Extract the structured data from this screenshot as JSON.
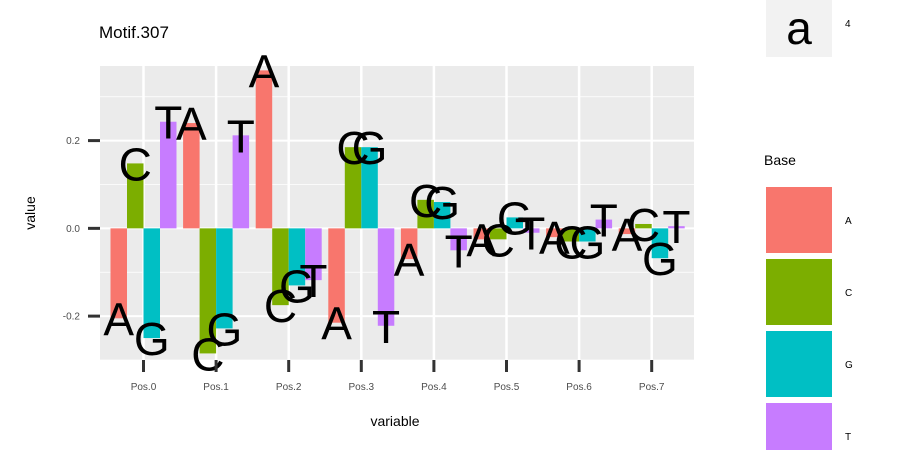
{
  "chart_data": {
    "type": "bar",
    "title": "Motif.307",
    "xlabel": "variable",
    "ylabel": "value",
    "categories": [
      "Pos.0",
      "Pos.1",
      "Pos.2",
      "Pos.3",
      "Pos.4",
      "Pos.5",
      "Pos.6",
      "Pos.7"
    ],
    "ylim": [
      -0.3,
      0.37
    ],
    "yticks": [
      -0.2,
      0.0,
      0.2
    ],
    "ytick_labels": [
      "-0.2",
      "0.0",
      "0.2"
    ],
    "grid": true,
    "legend_position": "right",
    "series": [
      {
        "name": "A",
        "color": "#F8766D",
        "values": [
          -0.205,
          0.24,
          0.36,
          -0.215,
          -0.07,
          -0.025,
          -0.02,
          -0.013
        ]
      },
      {
        "name": "C",
        "color": "#7CAE00",
        "values": [
          0.148,
          -0.285,
          -0.175,
          0.185,
          0.065,
          -0.025,
          -0.03,
          0.01
        ]
      },
      {
        "name": "G",
        "color": "#00BFC4",
        "values": [
          -0.25,
          -0.228,
          -0.13,
          0.185,
          0.06,
          0.025,
          -0.03,
          -0.068
        ]
      },
      {
        "name": "T",
        "color": "#C77CFF",
        "values": [
          0.243,
          0.212,
          -0.118,
          -0.222,
          -0.05,
          -0.01,
          0.02,
          0.005
        ]
      }
    ]
  },
  "legend": {
    "title": "Base",
    "items": [
      {
        "label": "A",
        "color": "#F8766D"
      },
      {
        "label": "C",
        "color": "#7CAE00"
      },
      {
        "label": "G",
        "color": "#00BFC4"
      },
      {
        "label": "T",
        "color": "#C77CFF"
      }
    ],
    "key_glyph": "a",
    "key_label": "4"
  }
}
